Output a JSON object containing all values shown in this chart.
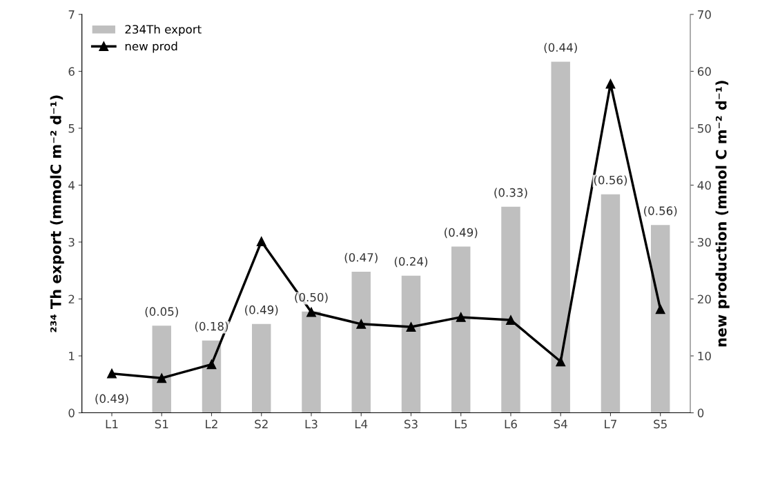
{
  "chart_data": {
    "type": "bar",
    "categories": [
      "L1",
      "S1",
      "L2",
      "S2",
      "L3",
      "L4",
      "S3",
      "L5",
      "L6",
      "S4",
      "L7",
      "S5"
    ],
    "ylabel": "²³⁴ Th export (mmolC m⁻² d⁻¹)",
    "y2label": "new production (mmol C m⁻² d⁻¹)",
    "ylim": [
      0,
      7
    ],
    "yticks": [
      0,
      1,
      2,
      3,
      4,
      5,
      6,
      7
    ],
    "y2lim": [
      0,
      70
    ],
    "y2ticks": [
      0,
      10,
      20,
      30,
      40,
      50,
      60,
      70
    ],
    "legend": "top left",
    "grid": false,
    "series": [
      {
        "name": "234Th export",
        "color": "#bfbfbf",
        "values": [
          0,
          1.53,
          1.27,
          1.56,
          1.78,
          2.48,
          2.41,
          2.92,
          3.62,
          6.17,
          3.84,
          3.3
        ]
      },
      {
        "name": "new prod",
        "type": "line",
        "axis": "y2",
        "color": "#000000",
        "marker": "triangle",
        "values": [
          6.9,
          6.1,
          8.5,
          30.1,
          17.7,
          15.6,
          15.1,
          16.8,
          16.3,
          9.0,
          57.8,
          18.2
        ]
      }
    ],
    "annotations": [
      {
        "text": "(0.49)",
        "x": "L1",
        "y": 0
      },
      {
        "text": "(0.05)",
        "x": "S1",
        "y": 1.53
      },
      {
        "text": "(0.18)",
        "x": "L2",
        "y": 1.27
      },
      {
        "text": "(0.49)",
        "x": "S2",
        "y": 1.56
      },
      {
        "text": "(0.50)",
        "x": "L3",
        "y": 1.78
      },
      {
        "text": "(0.47)",
        "x": "L4",
        "y": 2.48
      },
      {
        "text": "(0.24)",
        "x": "S3",
        "y": 2.41
      },
      {
        "text": "(0.49)",
        "x": "L5",
        "y": 2.92
      },
      {
        "text": "(0.33)",
        "x": "L6",
        "y": 3.62
      },
      {
        "text": "(0.44)",
        "x": "S4",
        "y": 6.17
      },
      {
        "text": "(0.56)",
        "x": "L7",
        "y": 3.84
      },
      {
        "text": "(0.56)",
        "x": "S5",
        "y": 3.3
      }
    ]
  }
}
